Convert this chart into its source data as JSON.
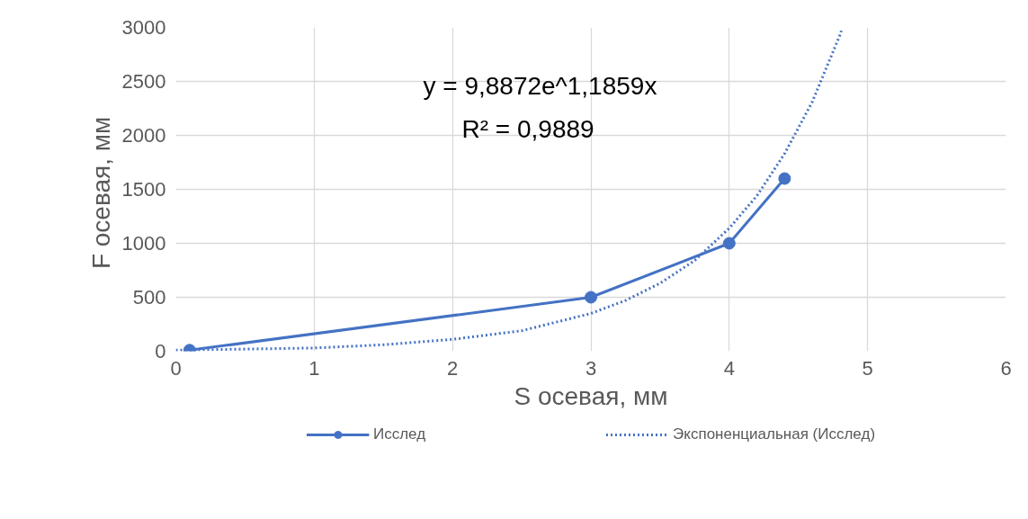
{
  "chart_data": {
    "type": "line",
    "xlabel": "S осевая, мм",
    "ylabel": "F осевая,  мм",
    "xlim": [
      0,
      6
    ],
    "xticks": [
      0,
      1,
      2,
      3,
      4,
      5,
      6
    ],
    "ylim": [
      0,
      3000
    ],
    "yticks": [
      0,
      500,
      1000,
      1500,
      2000,
      2500,
      3000
    ],
    "grid": true,
    "legend": "bottom",
    "annotations": [
      "y = 9,8872e^1,1859x",
      "R² = 0,9889"
    ],
    "series": [
      {
        "name": "Исслед",
        "color": "#4472c4",
        "marker": "circle",
        "line_style": "solid",
        "x": [
          0.1,
          3,
          4,
          4.4
        ],
        "values": [
          10,
          500,
          1000,
          1600
        ]
      },
      {
        "name": "Экспоненциальная (Исслед)",
        "color": "#4472c4",
        "marker": "none",
        "line_style": "dotted",
        "x": [
          0,
          0.5,
          1,
          1.5,
          2,
          2.5,
          3,
          3.25,
          3.5,
          3.75,
          4,
          4.2,
          4.4,
          4.6,
          4.8,
          4.81
        ],
        "values": [
          10,
          20,
          30,
          60,
          110,
          190,
          350,
          470,
          630,
          840,
          1140,
          1440,
          1830,
          2310,
          2930,
          2970
        ]
      }
    ]
  }
}
